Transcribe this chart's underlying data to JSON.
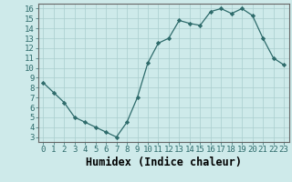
{
  "x": [
    0,
    1,
    2,
    3,
    4,
    5,
    6,
    7,
    8,
    9,
    10,
    11,
    12,
    13,
    14,
    15,
    16,
    17,
    18,
    19,
    20,
    21,
    22,
    23
  ],
  "y": [
    8.5,
    7.5,
    6.5,
    5.0,
    4.5,
    4.0,
    3.5,
    3.0,
    4.5,
    7.0,
    10.5,
    12.5,
    13.0,
    14.8,
    14.5,
    14.3,
    15.7,
    16.0,
    15.5,
    16.0,
    15.3,
    13.0,
    11.0,
    10.3
  ],
  "xlim": [
    -0.5,
    23.5
  ],
  "ylim": [
    2.5,
    16.5
  ],
  "yticks": [
    3,
    4,
    5,
    6,
    7,
    8,
    9,
    10,
    11,
    12,
    13,
    14,
    15,
    16
  ],
  "xticks": [
    0,
    1,
    2,
    3,
    4,
    5,
    6,
    7,
    8,
    9,
    10,
    11,
    12,
    13,
    14,
    15,
    16,
    17,
    18,
    19,
    20,
    21,
    22,
    23
  ],
  "xlabel": "Humidex (Indice chaleur)",
  "line_color": "#2e6b6b",
  "marker": "D",
  "marker_size": 2.2,
  "bg_color": "#ceeaea",
  "grid_color": "#aacece",
  "tick_label_fontsize": 6.5,
  "xlabel_fontsize": 8.5,
  "xlabel_bold": true
}
